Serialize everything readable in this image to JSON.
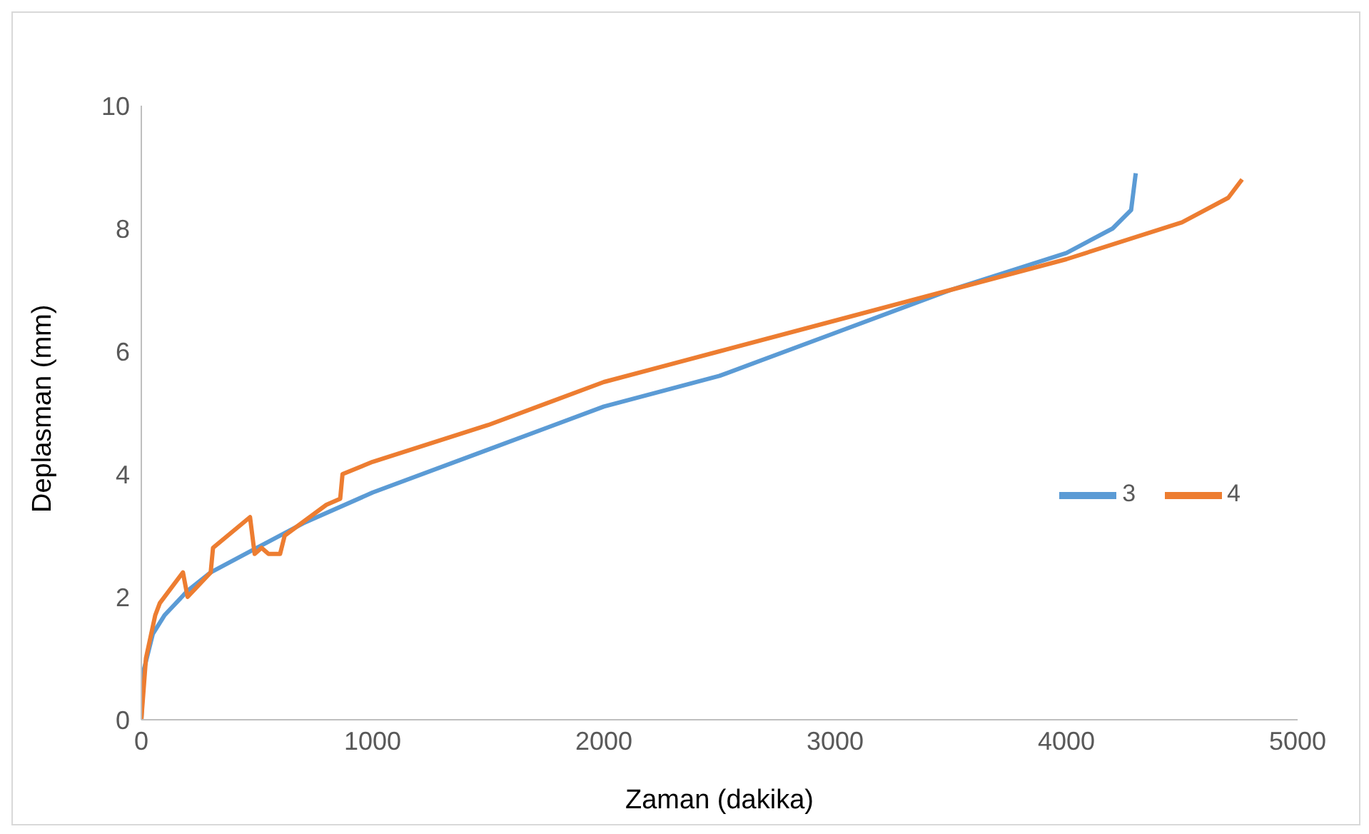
{
  "chart_data": {
    "type": "line",
    "xlabel": "Zaman (dakika)",
    "ylabel": "Deplasman (mm)",
    "xlim": [
      0,
      5000
    ],
    "xticks": [
      0,
      1000,
      2000,
      3000,
      4000,
      5000
    ],
    "ylim": [
      0,
      10
    ],
    "yticks": [
      0,
      2,
      4,
      6,
      8,
      10
    ],
    "grid": false,
    "legend": "right",
    "marker": "none",
    "line_style": "solid",
    "series": [
      {
        "name": "3",
        "color": "#5b9bd5",
        "x": [
          0,
          10,
          50,
          100,
          200,
          300,
          500,
          700,
          1000,
          1500,
          2000,
          2500,
          3000,
          3500,
          4000,
          4200,
          4280,
          4300
        ],
        "values": [
          0,
          0.8,
          1.4,
          1.7,
          2.1,
          2.4,
          2.8,
          3.2,
          3.7,
          4.4,
          5.1,
          5.6,
          6.3,
          7.0,
          7.6,
          8.0,
          8.3,
          8.9
        ]
      },
      {
        "name": "4",
        "color": "#ed7d31",
        "x": [
          0,
          20,
          60,
          80,
          180,
          200,
          300,
          310,
          470,
          490,
          520,
          550,
          600,
          620,
          800,
          860,
          870,
          1000,
          1500,
          2000,
          2500,
          3000,
          3500,
          4000,
          4500,
          4700,
          4760
        ],
        "values": [
          0,
          1.0,
          1.7,
          1.9,
          2.4,
          2.0,
          2.4,
          2.8,
          3.3,
          2.7,
          2.8,
          2.7,
          2.7,
          3.0,
          3.5,
          3.6,
          4.0,
          4.2,
          4.8,
          5.5,
          6.0,
          6.5,
          7.0,
          7.5,
          8.1,
          8.5,
          8.8
        ]
      }
    ]
  }
}
